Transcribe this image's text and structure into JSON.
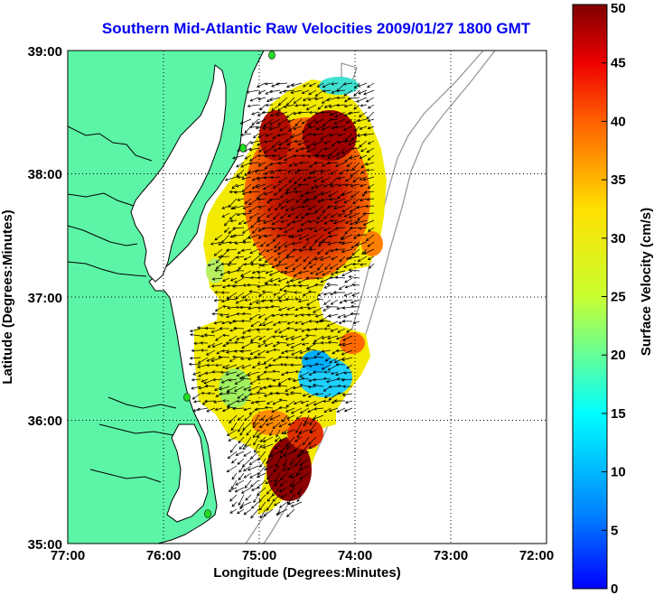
{
  "title": "Southern Mid-Atlantic Raw Velocities 2009/01/27 1800 GMT",
  "x_axis": {
    "label": "Longitude (Degrees:Minutes)",
    "ticks": [
      "77:00",
      "76:00",
      "75:00",
      "74:00",
      "73:00",
      "72:00"
    ]
  },
  "y_axis": {
    "label": "Latitude (Degrees:Minutes)",
    "ticks": [
      "39:00",
      "38:00",
      "37:00",
      "36:00",
      "35:00"
    ]
  },
  "colorbar": {
    "label": "Surface Velocity (cm/s)",
    "ticks": [
      "50",
      "45",
      "40",
      "35",
      "30",
      "25",
      "20",
      "15",
      "10",
      "5",
      "0"
    ],
    "min": 0,
    "max": 50,
    "colormap": "jet"
  },
  "colors": {
    "land": "#5cf5a8",
    "ocean": "#ffffff",
    "coastline": "#000000",
    "bathymetry": "#9a9a9a",
    "sites": "#22dd22",
    "title": "#0000ee"
  },
  "map_extent": {
    "lon_range": [
      77,
      72
    ],
    "lat_range": [
      35,
      39
    ]
  }
}
